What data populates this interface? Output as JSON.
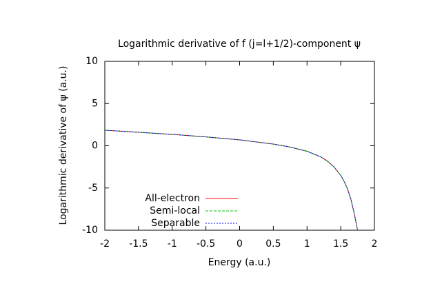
{
  "chart_data": {
    "type": "line",
    "title": "Logarithmic derivative of f (j=l+1/2)-component ψ",
    "x_label": "Energy (a.u.)",
    "y_label": "Logarithmic derivative of ψ (a.u.)",
    "x": [
      -2,
      -1.5,
      -1,
      -0.5,
      0,
      0.5,
      0.75,
      1,
      1.2,
      1.3,
      1.4,
      1.5,
      1.55,
      1.6,
      1.65,
      1.7,
      1.73,
      1.75
    ],
    "series": [
      {
        "name": "All-electron",
        "color": "#ff0000",
        "dash": "none",
        "values": [
          1.84,
          1.6,
          1.35,
          1.05,
          0.7,
          0.2,
          -0.15,
          -0.65,
          -1.3,
          -1.8,
          -2.5,
          -3.5,
          -4.2,
          -5.1,
          -6.3,
          -8.0,
          -9.2,
          -10
        ]
      },
      {
        "name": "Semi-local",
        "color": "#00c000",
        "dash": "4 2",
        "values": [
          1.84,
          1.6,
          1.35,
          1.05,
          0.7,
          0.2,
          -0.15,
          -0.65,
          -1.3,
          -1.8,
          -2.5,
          -3.5,
          -4.2,
          -5.1,
          -6.3,
          -8.0,
          -9.2,
          -10
        ]
      },
      {
        "name": "Separable",
        "color": "#0000ff",
        "dash": "2 2",
        "values": [
          1.84,
          1.6,
          1.35,
          1.05,
          0.7,
          0.2,
          -0.15,
          -0.65,
          -1.3,
          -1.8,
          -2.5,
          -3.5,
          -4.2,
          -5.1,
          -6.3,
          -8.0,
          -9.2,
          -10
        ]
      }
    ],
    "xlim": [
      -2,
      2
    ],
    "xticks": [
      -2,
      -1.5,
      -1,
      -0.5,
      0,
      0.5,
      1,
      1.5,
      2
    ],
    "ylim": [
      -10,
      10
    ],
    "yticks": [
      -10,
      -5,
      0,
      5,
      10
    ],
    "grid": false,
    "legend": "bottom-left"
  }
}
